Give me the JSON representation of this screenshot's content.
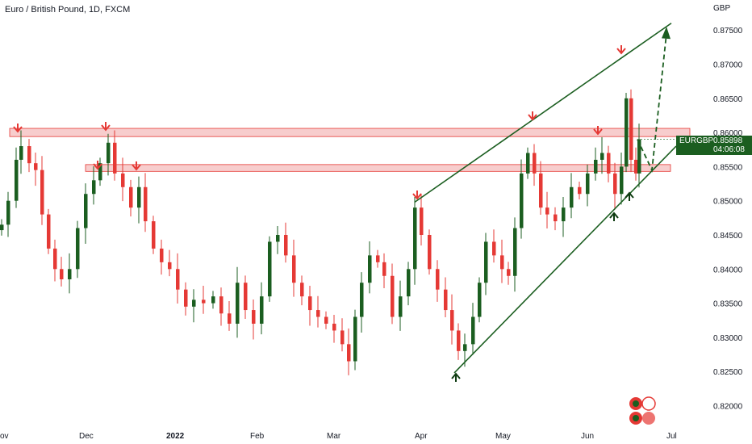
{
  "header": {
    "title": "Euro / British Pound, 1D, FXCM"
  },
  "price_tag": {
    "symbol": "EURGBP",
    "price": "0.85898",
    "countdown": "04:06:08"
  },
  "colors": {
    "up": "#1b5e20",
    "down": "#e53935",
    "zone_fill": "#f3b8b8",
    "zone_stroke": "#e53935",
    "trend": "#1b5e20"
  },
  "chart_data": {
    "type": "candlestick",
    "title": "Euro / British Pound, 1D, FXCM",
    "y_axis": {
      "unit": "GBP",
      "range": [
        0.818,
        0.8775
      ],
      "ticks": [
        "0.87500",
        "0.87000",
        "0.86500",
        "0.86000",
        "0.85500",
        "0.85000",
        "0.84500",
        "0.84000",
        "0.83500",
        "0.83000",
        "0.82500",
        "0.82000"
      ]
    },
    "x_axis": {
      "labels": [
        {
          "text": "ov",
          "bold": false
        },
        {
          "text": "Dec",
          "bold": false
        },
        {
          "text": "2022",
          "bold": true
        },
        {
          "text": "Feb",
          "bold": false
        },
        {
          "text": "Mar",
          "bold": false
        },
        {
          "text": "Apr",
          "bold": false
        },
        {
          "text": "May",
          "bold": false
        },
        {
          "text": "Jun",
          "bold": false
        },
        {
          "text": "Jul",
          "bold": false
        }
      ]
    },
    "zones": [
      {
        "name": "upper-resistance-zone",
        "from": 0.8594,
        "to": 0.8606
      },
      {
        "name": "lower-resistance-zone",
        "from": 0.8543,
        "to": 0.8553
      }
    ],
    "last_price": 0.85898
  }
}
